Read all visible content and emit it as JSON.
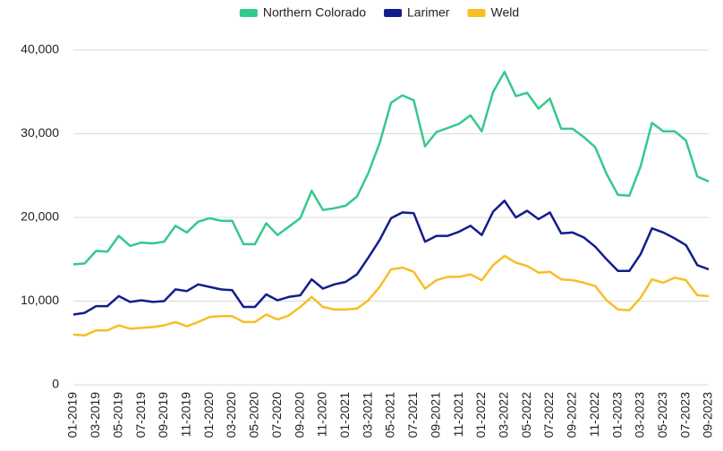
{
  "chart_data": {
    "type": "line",
    "categories": [
      "01-2019",
      null,
      "03-2019",
      null,
      "05-2019",
      null,
      "07-2019",
      null,
      "09-2019",
      null,
      "11-2019",
      null,
      "01-2020",
      null,
      "03-2020",
      null,
      "05-2020",
      null,
      "07-2020",
      null,
      "09-2020",
      null,
      "11-2020",
      null,
      "01-2021",
      null,
      "03-2021",
      null,
      "05-2021",
      null,
      "07-2021",
      null,
      "09-2021",
      null,
      "11-2021",
      null,
      "01-2022",
      null,
      "03-2022",
      null,
      "05-2022",
      null,
      "07-2022",
      null,
      "09-2022",
      null,
      "11-2022",
      null,
      "01-2023",
      null,
      "03-2023",
      null,
      "05-2023",
      null,
      "07-2023",
      null,
      "09-2023"
    ],
    "series": [
      {
        "name": "Northern Colorado",
        "color": "#34c98c",
        "values": [
          14400,
          14500,
          16000,
          15900,
          17800,
          16600,
          17000,
          16900,
          17100,
          19000,
          18200,
          19500,
          19900,
          19600,
          19600,
          16800,
          16800,
          19300,
          17900,
          18900,
          19900,
          23200,
          20900,
          21100,
          21400,
          22500,
          25300,
          28900,
          33700,
          34600,
          34000,
          28500,
          30200,
          30700,
          31200,
          32200,
          30300,
          35000,
          37400,
          34500,
          34900,
          33000,
          34200,
          30600,
          30600,
          29600,
          28400,
          25200,
          22700,
          22600,
          26100,
          31300,
          30300,
          30300,
          29200,
          24900,
          24300
        ]
      },
      {
        "name": "Larimer",
        "color": "#101e8c",
        "values": [
          8400,
          8600,
          9400,
          9400,
          10600,
          9900,
          10100,
          9900,
          10000,
          11400,
          11200,
          12000,
          11700,
          11400,
          11300,
          9300,
          9300,
          10800,
          10100,
          10500,
          10700,
          12600,
          11500,
          12000,
          12300,
          13200,
          15200,
          17300,
          19900,
          20600,
          20500,
          17100,
          17800,
          17800,
          18300,
          19000,
          17900,
          20700,
          22000,
          20000,
          20800,
          19800,
          20600,
          18100,
          18200,
          17600,
          16500,
          15000,
          13600,
          13600,
          15600,
          18700,
          18200,
          17500,
          16700,
          14300,
          13800
        ]
      },
      {
        "name": "Weld",
        "color": "#f7be25",
        "values": [
          6000,
          5900,
          6500,
          6500,
          7100,
          6700,
          6800,
          6900,
          7100,
          7500,
          7000,
          7500,
          8100,
          8200,
          8200,
          7500,
          7500,
          8400,
          7800,
          8300,
          9300,
          10500,
          9300,
          9000,
          9000,
          9100,
          10100,
          11700,
          13800,
          14000,
          13500,
          11500,
          12500,
          12900,
          12900,
          13200,
          12500,
          14300,
          15400,
          14600,
          14200,
          13400,
          13500,
          12600,
          12500,
          12200,
          11800,
          10100,
          9000,
          8900,
          10400,
          12600,
          12200,
          12800,
          12500,
          10700,
          10600
        ]
      }
    ],
    "ylim": [
      0,
      40000
    ],
    "yticks": [
      0,
      {
        "value": 10000,
        "label": "10,000"
      },
      {
        "value": 20000,
        "label": "20,000"
      },
      {
        "value": 30000,
        "label": "30,000"
      },
      {
        "value": 40000,
        "label": "40,000"
      }
    ],
    "grid": true,
    "legend": "top"
  }
}
